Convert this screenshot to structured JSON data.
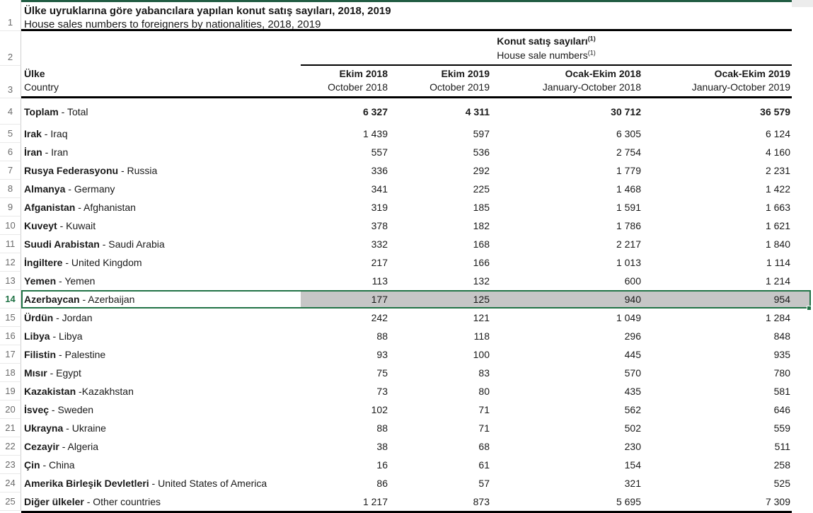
{
  "sheet": {
    "title": {
      "tr": "Ülke uyruklarına göre yabancılara yapılan konut satış sayıları, 2018, 2019",
      "en": "House sales numbers to foreigners by nationalities, 2018, 2019"
    },
    "spanner": {
      "tr": "Konut satış sayıları",
      "en": "House sale numbers",
      "footnote_marker": "(1)"
    },
    "row_header": {
      "tr": "Ülke",
      "en": "Country"
    },
    "columns": [
      {
        "tr": "Ekim 2018",
        "en": "October 2018"
      },
      {
        "tr": "Ekim 2019",
        "en": "October 2019"
      },
      {
        "tr": "Ocak-Ekim 2018",
        "en": "January-October 2018"
      },
      {
        "tr": "Ocak-Ekim 2019",
        "en": "January-October 2019"
      }
    ],
    "gutter": [
      "1",
      "2",
      "3"
    ],
    "rows": [
      {
        "num": "4",
        "tr": "Toplam",
        "sep": " - ",
        "en": "Total",
        "values": [
          "6 327",
          "4 311",
          "30 712",
          "36 579"
        ],
        "bold": true
      },
      {
        "num": "5",
        "tr": "Irak",
        "sep": " - ",
        "en": "Iraq",
        "values": [
          "1 439",
          "597",
          "6 305",
          "6 124"
        ]
      },
      {
        "num": "6",
        "tr": "İran",
        "sep": " - ",
        "en": "Iran",
        "values": [
          "557",
          "536",
          "2 754",
          "4 160"
        ]
      },
      {
        "num": "7",
        "tr": "Rusya Federasyonu",
        "sep": " - ",
        "en": "Russia",
        "values": [
          "336",
          "292",
          "1 779",
          "2 231"
        ]
      },
      {
        "num": "8",
        "tr": "Almanya",
        "sep": " - ",
        "en": "Germany",
        "values": [
          "341",
          "225",
          "1 468",
          "1 422"
        ]
      },
      {
        "num": "9",
        "tr": "Afganistan",
        "sep": " - ",
        "en": "Afghanistan",
        "values": [
          "319",
          "185",
          "1 591",
          "1 663"
        ]
      },
      {
        "num": "10",
        "tr": "Kuveyt",
        "sep": " - ",
        "en": "Kuwait",
        "values": [
          "378",
          "182",
          "1 786",
          "1 621"
        ]
      },
      {
        "num": "11",
        "tr": "Suudi Arabistan",
        "sep": " - ",
        "en": "Saudi Arabia",
        "values": [
          "332",
          "168",
          "2 217",
          "1 840"
        ]
      },
      {
        "num": "12",
        "tr": "İngiltere",
        "sep": " - ",
        "en": "United Kingdom",
        "values": [
          "217",
          "166",
          "1 013",
          "1 114"
        ]
      },
      {
        "num": "13",
        "tr": "Yemen",
        "sep": " - ",
        "en": "Yemen",
        "values": [
          "113",
          "132",
          "600",
          "1 214"
        ]
      },
      {
        "num": "14",
        "tr": "Azerbaycan",
        "sep": " - ",
        "en": "Azerbaijan",
        "values": [
          "177",
          "125",
          "940",
          "954"
        ],
        "selected": true
      },
      {
        "num": "15",
        "tr": "Ürdün",
        "sep": " - ",
        "en": "Jordan",
        "values": [
          "242",
          "121",
          "1 049",
          "1 284"
        ]
      },
      {
        "num": "16",
        "tr": "Libya",
        "sep": " - ",
        "en": "Libya",
        "values": [
          "88",
          "118",
          "296",
          "848"
        ]
      },
      {
        "num": "17",
        "tr": "Filistin",
        "sep": " - ",
        "en": "Palestine",
        "values": [
          "93",
          "100",
          "445",
          "935"
        ]
      },
      {
        "num": "18",
        "tr": "Mısır",
        "sep": " - ",
        "en": "Egypt",
        "values": [
          "75",
          "83",
          "570",
          "780"
        ]
      },
      {
        "num": "19",
        "tr": "Kazakistan",
        "sep": " -",
        "en": "Kazakhstan",
        "values": [
          "73",
          "80",
          "435",
          "581"
        ]
      },
      {
        "num": "20",
        "tr": "İsveç",
        "sep": " - ",
        "en": "Sweden",
        "values": [
          "102",
          "71",
          "562",
          "646"
        ]
      },
      {
        "num": "21",
        "tr": "Ukrayna",
        "sep": " - ",
        "en": "Ukraine",
        "values": [
          "88",
          "71",
          "502",
          "559"
        ]
      },
      {
        "num": "22",
        "tr": "Cezayir",
        "sep": " - ",
        "en": "Algeria",
        "values": [
          "38",
          "68",
          "230",
          "511"
        ]
      },
      {
        "num": "23",
        "tr": "Çin",
        "sep": " - ",
        "en": "China",
        "values": [
          "16",
          "61",
          "154",
          "258"
        ]
      },
      {
        "num": "24",
        "tr": "Amerika Birleşik Devletleri",
        "sep": " - ",
        "en": "United States of America",
        "values": [
          "86",
          "57",
          "321",
          "525"
        ]
      },
      {
        "num": "25",
        "tr": "Diğer ülkeler",
        "sep": " - ",
        "en": "Other countries",
        "values": [
          "1 217",
          "873",
          "5 695",
          "7 309"
        ]
      }
    ],
    "selection": {
      "row_num": "14",
      "border_color": "#217346",
      "fill_color": "#c6c6c6"
    }
  }
}
